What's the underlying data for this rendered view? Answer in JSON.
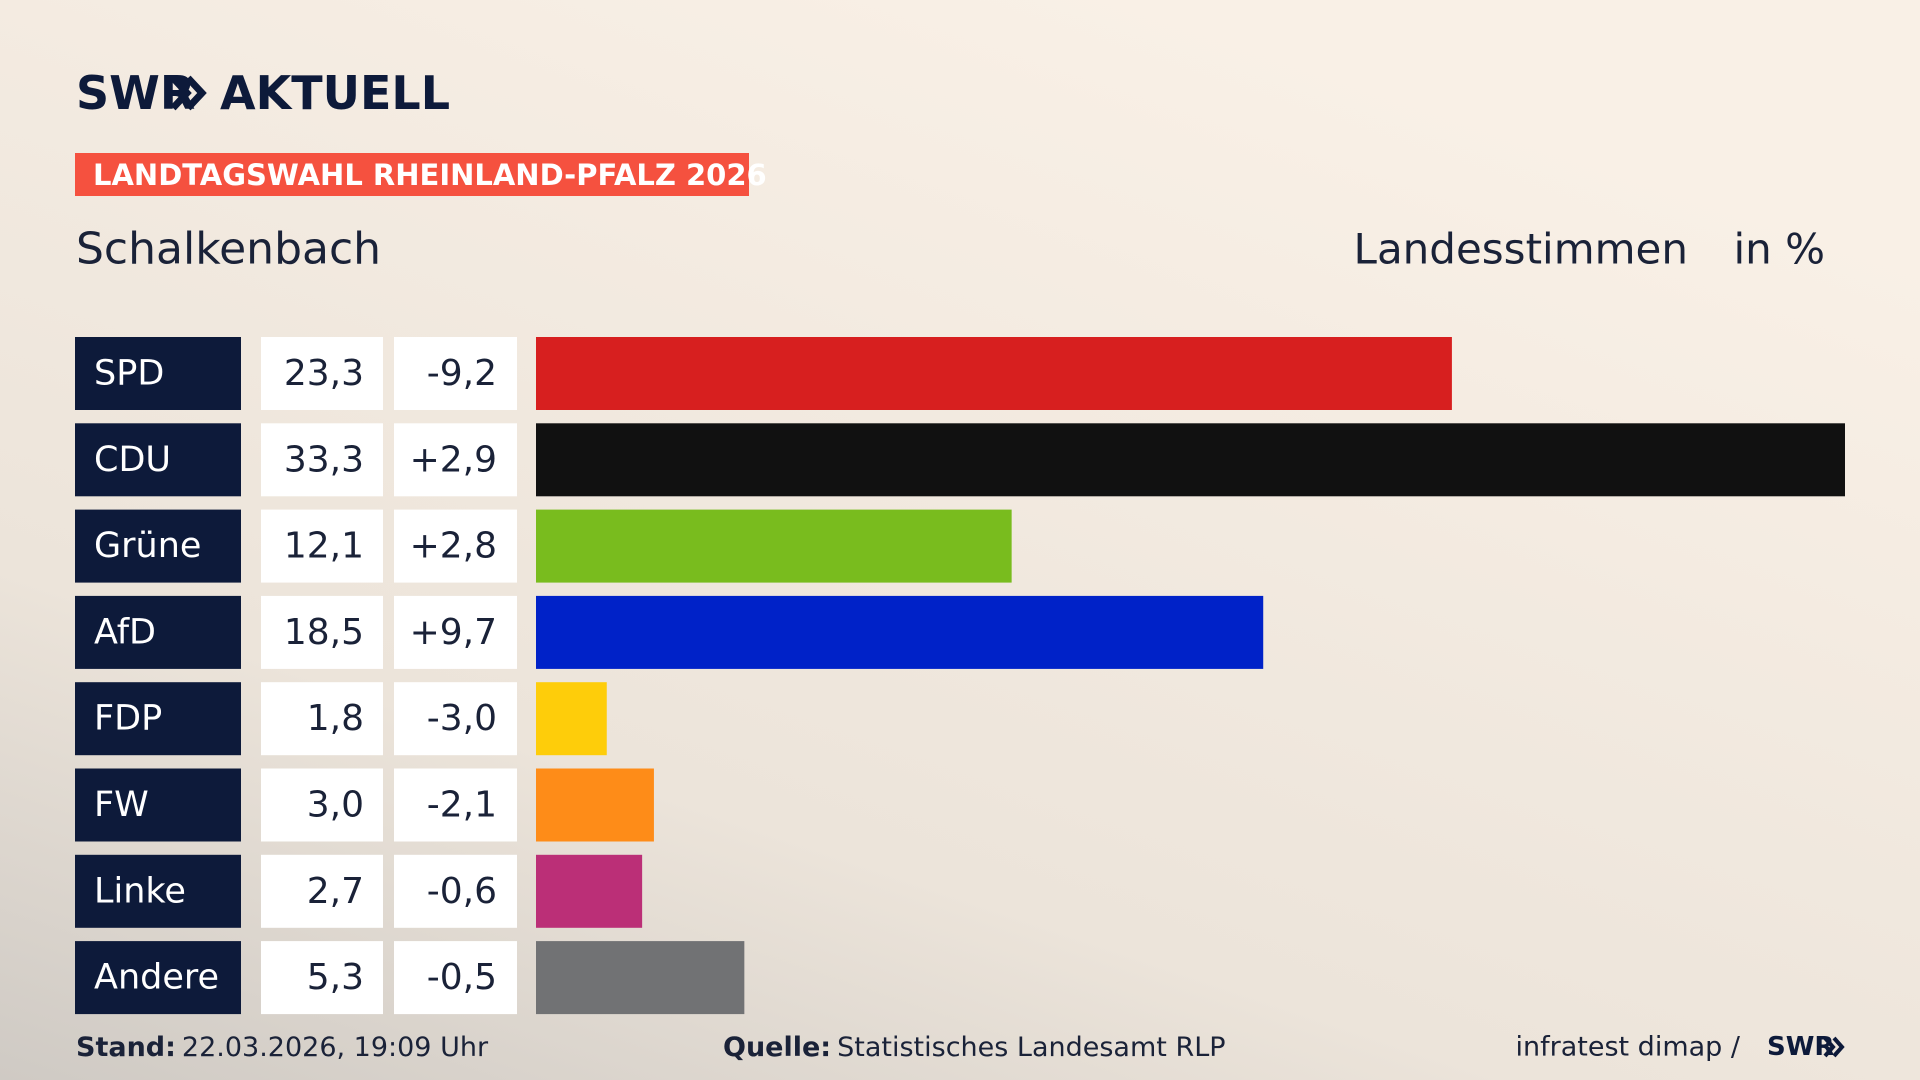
{
  "chart_data": {
    "type": "bar",
    "brand": "SWR",
    "brand_suffix": "AKTUELL",
    "badge": "LANDTAGSWAHL RHEINLAND-PFALZ 2026",
    "title": "Schalkenbach",
    "subtitle": "Landesstimmen",
    "unit": "in %",
    "categories": [
      "SPD",
      "CDU",
      "Grüne",
      "AfD",
      "FDP",
      "FW",
      "Linke",
      "Andere"
    ],
    "colors": [
      "#d71f1f",
      "#111111",
      "#79bc1e",
      "#0022c8",
      "#fecd0a",
      "#fe8c18",
      "#bb2f77",
      "#717274"
    ],
    "values": [
      23.3,
      33.3,
      12.1,
      18.5,
      1.8,
      3.0,
      2.7,
      5.3
    ],
    "value_labels": [
      "23,3",
      "33,3",
      "12,1",
      "18,5",
      "1,8",
      "3,0",
      "2,7",
      "5,3"
    ],
    "changes": [
      -9.2,
      2.9,
      2.8,
      9.7,
      -3.0,
      -2.1,
      -0.6,
      -0.5
    ],
    "change_labels": [
      "-9,2",
      "+2,9",
      "+2,8",
      "+9,7",
      "-3,0",
      "-2,1",
      "-0,6",
      "-0,5"
    ],
    "stand_label": "Stand:",
    "stand": "22.03.2026, 19:09 Uhr",
    "source_label": "Quelle:",
    "source": "Statistisches Landesamt RLP",
    "credit": "infratest dimap /",
    "credit_brand": "SWR"
  }
}
